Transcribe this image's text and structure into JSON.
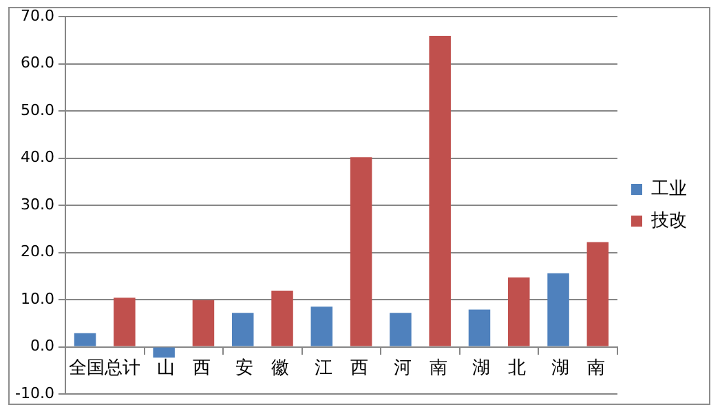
{
  "chart_data": {
    "type": "bar",
    "categories": [
      "全国总计",
      "山　西",
      "安　徽",
      "江　西",
      "河　南",
      "湖　北",
      "湖　南"
    ],
    "series": [
      {
        "name": "工业",
        "color": "#4f81bd",
        "values": [
          2.9,
          -2.3,
          7.2,
          8.5,
          7.2,
          7.9,
          15.6
        ]
      },
      {
        "name": "技改",
        "color": "#c0504d",
        "values": [
          10.4,
          9.9,
          11.9,
          40.2,
          65.9,
          14.7,
          22.2
        ]
      }
    ],
    "ylim": [
      -10,
      70
    ],
    "yticks": [
      {
        "value": -10,
        "label": "-10.0"
      },
      {
        "value": 0,
        "label": "0.0"
      },
      {
        "value": 10,
        "label": "10.0"
      },
      {
        "value": 20,
        "label": "20.0"
      },
      {
        "value": 30,
        "label": "30.0"
      },
      {
        "value": 40,
        "label": "40.0"
      },
      {
        "value": 50,
        "label": "50.0"
      },
      {
        "value": 60,
        "label": "60.0"
      },
      {
        "value": 70,
        "label": "70.0"
      }
    ],
    "grid": "y",
    "legend": "right"
  }
}
